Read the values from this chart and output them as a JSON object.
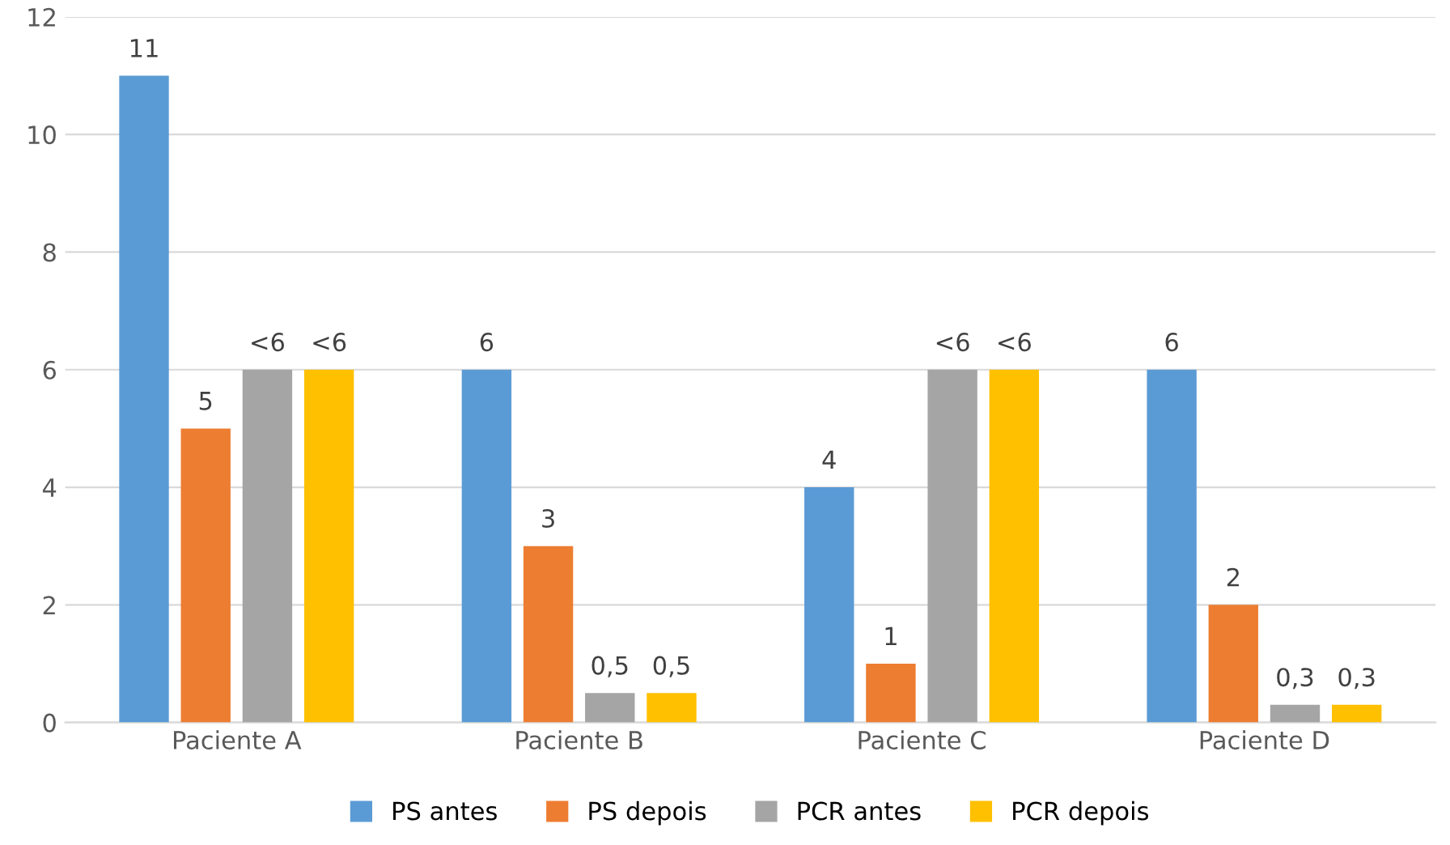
{
  "chart_data": {
    "type": "bar",
    "categories": [
      "Paciente A",
      "Paciente B",
      "Paciente C",
      "Paciente D"
    ],
    "series": [
      {
        "name": "PS antes",
        "color": "#5b9bd5",
        "values": [
          11,
          6,
          4,
          6
        ],
        "value_labels": [
          "11",
          "6",
          "4",
          "6"
        ]
      },
      {
        "name": "PS depois",
        "color": "#ed7d31",
        "values": [
          5,
          3,
          1,
          2
        ],
        "value_labels": [
          "5",
          "3",
          "1",
          "2"
        ]
      },
      {
        "name": "PCR antes",
        "color": "#a5a5a5",
        "values": [
          6,
          0.5,
          6,
          0.3
        ],
        "value_labels": [
          "<6",
          "0,5",
          "<6",
          "0,3"
        ]
      },
      {
        "name": "PCR depois",
        "color": "#ffc000",
        "values": [
          6,
          0.5,
          6,
          0.3
        ],
        "value_labels": [
          "<6",
          "0,5",
          "<6",
          "0,3"
        ]
      }
    ],
    "ylim": [
      0,
      12
    ],
    "yticks": [
      0,
      2,
      4,
      6,
      8,
      10,
      12
    ],
    "grid": "y",
    "legend": "bottom"
  }
}
